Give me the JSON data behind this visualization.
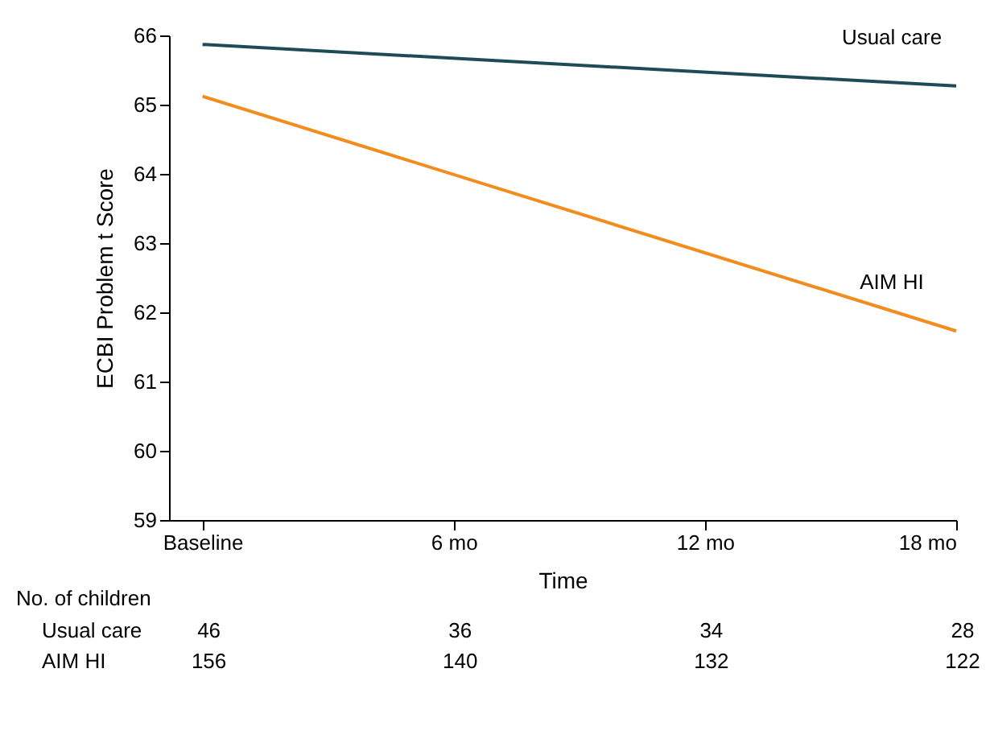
{
  "chart_data": {
    "type": "line",
    "xlabel": "Time",
    "ylabel": "ECBI Problem t Score",
    "x": [
      0,
      18
    ],
    "series": [
      {
        "name": "Usual care",
        "color": "#1f4a57",
        "values": [
          65.87,
          65.27
        ]
      },
      {
        "name": "AIM HI",
        "color": "#f28c1e",
        "values": [
          65.12,
          61.73
        ]
      }
    ],
    "xlim": [
      -0.8,
      18
    ],
    "xticks": [
      {
        "value": 0,
        "label": "Baseline"
      },
      {
        "value": 6,
        "label": "6 mo"
      },
      {
        "value": 12,
        "label": "12 mo"
      },
      {
        "value": 18,
        "label": "18 mo"
      }
    ],
    "ylim": [
      59,
      66
    ],
    "yticks": [
      59,
      60,
      61,
      62,
      63,
      64,
      65,
      66
    ],
    "grid": false,
    "legend": false,
    "marker": "none",
    "line_style": "solid",
    "annotations": [
      "No. of children",
      "Usual care",
      "46",
      "36",
      "34",
      "28",
      "AIM HI",
      "156",
      "140",
      "132",
      "122"
    ]
  }
}
